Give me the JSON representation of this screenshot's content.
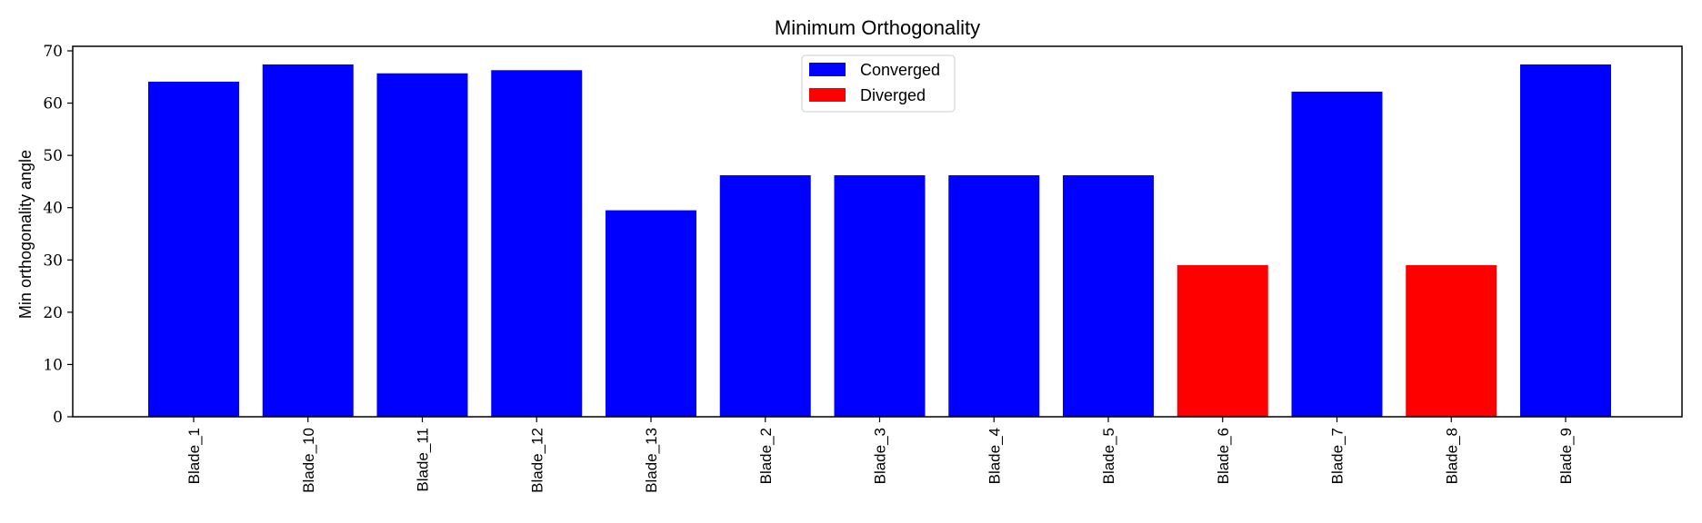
{
  "chart_data": {
    "type": "bar",
    "title": "Minimum Orthogonality",
    "xlabel": "",
    "ylabel": "Min orthogonality angle",
    "ylim": [
      0,
      70
    ],
    "yticks": [
      0,
      10,
      20,
      30,
      40,
      50,
      60,
      70
    ],
    "categories": [
      "Blade_1",
      "Blade_10",
      "Blade_11",
      "Blade_12",
      "Blade_13",
      "Blade_2",
      "Blade_3",
      "Blade_4",
      "Blade_5",
      "Blade_6",
      "Blade_7",
      "Blade_8",
      "Blade_9"
    ],
    "values": [
      64.1,
      67.4,
      65.7,
      66.3,
      39.5,
      46.2,
      46.2,
      46.2,
      46.2,
      29.0,
      62.2,
      29.0,
      67.4
    ],
    "status": [
      "Converged",
      "Converged",
      "Converged",
      "Converged",
      "Converged",
      "Converged",
      "Converged",
      "Converged",
      "Converged",
      "Diverged",
      "Converged",
      "Diverged",
      "Converged"
    ],
    "legend": {
      "placement": "upper-center",
      "entries": [
        {
          "label": "Converged",
          "color": "#0000ff"
        },
        {
          "label": "Diverged",
          "color": "#ff0000"
        }
      ]
    },
    "colors": {
      "Converged": "#0000ff",
      "Diverged": "#ff0000"
    },
    "grid": false
  }
}
